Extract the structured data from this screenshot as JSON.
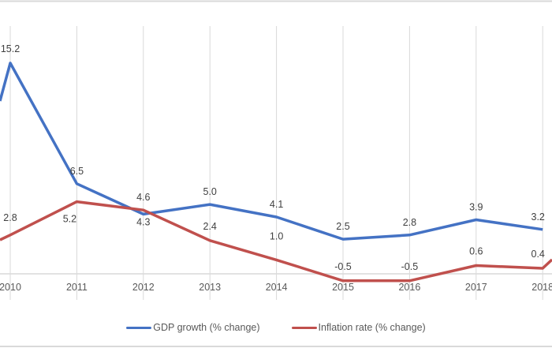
{
  "chart_data": {
    "type": "line",
    "title": "",
    "xlabel": "",
    "ylabel": "",
    "categories": [
      "2010",
      "2011",
      "2012",
      "2013",
      "2014",
      "2015",
      "2016",
      "2017",
      "2018"
    ],
    "series": [
      {
        "name": "GDP growth (% change)",
        "color": "#4472C4",
        "values": [
          15.2,
          6.5,
          4.3,
          5.0,
          4.1,
          2.5,
          2.8,
          3.9,
          3.2
        ],
        "labels": [
          "15.2",
          "6.5",
          "4.3",
          "5.0",
          "4.1",
          "2.5",
          "2.8",
          "3.9",
          "3.2"
        ]
      },
      {
        "name": "Inflation rate (% change)",
        "color": "#C0504D",
        "values": [
          2.8,
          5.2,
          4.6,
          2.4,
          1.0,
          -0.5,
          -0.5,
          0.6,
          0.4
        ],
        "labels": [
          "2.8",
          "5.2",
          "4.6",
          "2.4",
          "1.0",
          "-0.5",
          "-0.5",
          "0.6",
          "0.4"
        ]
      }
    ],
    "grid": "vertical",
    "legend_position": "bottom"
  },
  "legend": {
    "items": [
      {
        "label": "GDP growth (% change)",
        "color": "#4472C4"
      },
      {
        "label": "Inflation rate (% change)",
        "color": "#C0504D"
      }
    ]
  }
}
